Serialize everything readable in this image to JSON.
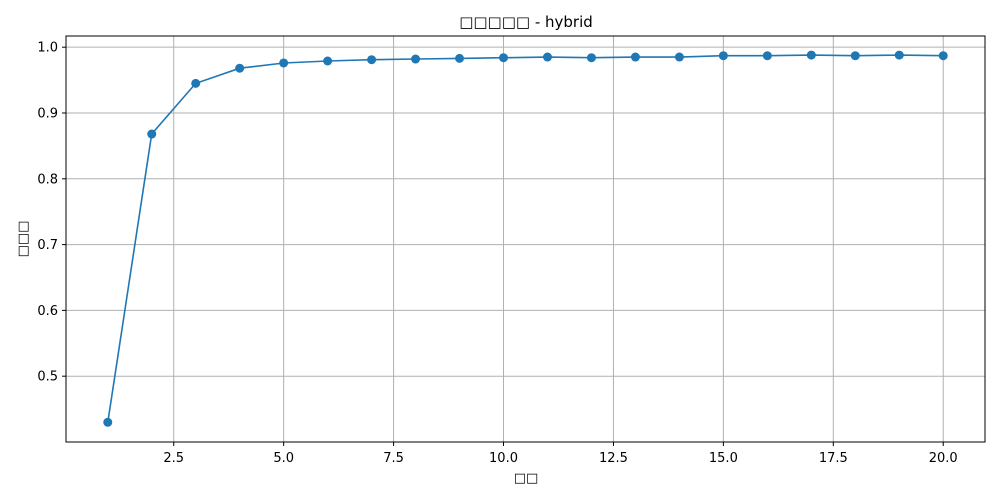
{
  "chart_data": {
    "type": "line",
    "title": "□□□□□ - hybrid",
    "xlabel": "□□",
    "ylabel": "□□□",
    "xlim": [
      0.05,
      20.95
    ],
    "ylim": [
      0.4,
      1.017
    ],
    "x_ticks": [
      2.5,
      5.0,
      7.5,
      10.0,
      12.5,
      15.0,
      17.5,
      20.0
    ],
    "x_tick_labels": [
      "2.5",
      "5.0",
      "7.5",
      "10.0",
      "12.5",
      "15.0",
      "17.5",
      "20.0"
    ],
    "y_ticks": [
      0.5,
      0.6,
      0.7,
      0.8,
      0.9,
      1.0
    ],
    "y_tick_labels": [
      "0.5",
      "0.6",
      "0.7",
      "0.8",
      "0.9",
      "1.0"
    ],
    "grid": true,
    "series": [
      {
        "color": "#1f77b4",
        "marker": "circle",
        "x": [
          1,
          2,
          3,
          4,
          5,
          6,
          7,
          8,
          9,
          10,
          11,
          12,
          13,
          14,
          15,
          16,
          17,
          18,
          19,
          20
        ],
        "y": [
          0.43,
          0.868,
          0.945,
          0.968,
          0.976,
          0.979,
          0.981,
          0.982,
          0.983,
          0.984,
          0.985,
          0.984,
          0.985,
          0.985,
          0.987,
          0.987,
          0.988,
          0.987,
          0.988,
          0.987
        ]
      }
    ]
  }
}
